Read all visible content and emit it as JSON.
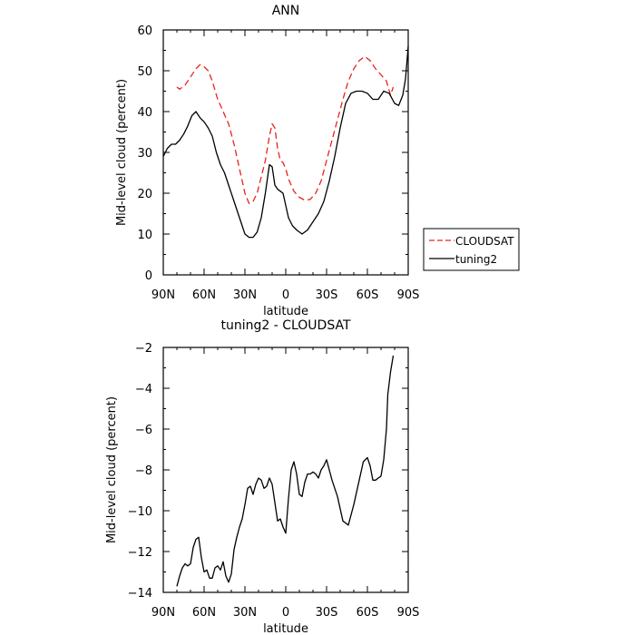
{
  "chart_data": [
    {
      "type": "line",
      "title": "ANN",
      "xlabel": "latitude",
      "ylabel": "Mid-level cloud (percent)",
      "xlim": [
        90,
        -90
      ],
      "ylim": [
        0,
        60
      ],
      "x_ticks": [
        90,
        60,
        30,
        0,
        -30,
        -60,
        -90
      ],
      "x_tick_labels": [
        "90N",
        "60N",
        "30N",
        "0",
        "30S",
        "60S",
        "90S"
      ],
      "y_ticks": [
        0,
        10,
        20,
        30,
        40,
        50,
        60
      ],
      "y_tick_labels": [
        "0",
        "10",
        "20",
        "30",
        "40",
        "50",
        "60"
      ],
      "grid": false,
      "legend": {
        "placement": "right",
        "entries": [
          {
            "label": "CLOUDSAT",
            "color": "#e8231f",
            "style": "dashed"
          },
          {
            "label": "tuning2",
            "color": "#000000",
            "style": "solid"
          }
        ]
      },
      "series": [
        {
          "name": "CLOUDSAT",
          "color": "#e8231f",
          "style": "dashed",
          "x": [
            80,
            78,
            74,
            70,
            66,
            63,
            60,
            57,
            54,
            50,
            46,
            42,
            38,
            34,
            30,
            27,
            24,
            21,
            18,
            15,
            12,
            10,
            8,
            6,
            4,
            2,
            0,
            -2,
            -6,
            -10,
            -14,
            -18,
            -22,
            -26,
            -30,
            -34,
            -38,
            -42,
            -46,
            -50,
            -54,
            -58,
            -62,
            -66,
            -70,
            -74,
            -77,
            -79
          ],
          "y": [
            46,
            45.5,
            46.5,
            48.5,
            50.5,
            51.5,
            51,
            50,
            47.5,
            43,
            40,
            37,
            32,
            26,
            20,
            17.5,
            18,
            20,
            24,
            28,
            34,
            37,
            36,
            31,
            28,
            27.5,
            26,
            23.5,
            20.5,
            19,
            18.3,
            18.5,
            20,
            23,
            28,
            33,
            38,
            43,
            47.5,
            50.5,
            52.5,
            53.5,
            52.5,
            50.5,
            49,
            47.5,
            44,
            46
          ]
        },
        {
          "name": "tuning2",
          "color": "#000000",
          "style": "solid",
          "x": [
            90,
            87,
            84,
            81,
            78,
            75,
            72,
            69,
            66,
            63,
            60,
            57,
            54,
            51,
            48,
            45,
            42,
            39,
            36,
            33,
            30,
            27,
            24,
            21,
            18,
            15,
            12,
            10,
            8,
            6,
            4,
            2,
            0,
            -2,
            -5,
            -8,
            -12,
            -16,
            -20,
            -24,
            -28,
            -32,
            -36,
            -40,
            -44,
            -48,
            -52,
            -56,
            -60,
            -64,
            -68,
            -72,
            -76,
            -80,
            -83,
            -86,
            -88,
            -90
          ],
          "y": [
            29,
            31,
            32,
            32,
            33,
            34.5,
            36.5,
            39,
            40,
            38.5,
            37.5,
            36,
            34,
            30,
            27,
            25,
            22,
            19,
            16,
            13,
            10,
            9.2,
            9.2,
            10.5,
            14,
            20,
            27,
            26.5,
            22,
            21,
            20.5,
            20,
            17,
            14,
            12,
            11,
            10,
            11,
            13,
            15,
            18,
            23,
            29,
            36,
            42,
            44.5,
            45,
            45,
            44.5,
            43,
            43,
            45,
            44.5,
            42,
            41.5,
            44,
            48,
            56
          ]
        }
      ]
    },
    {
      "type": "line",
      "title": "tuning2 - CLOUDSAT",
      "xlabel": "latitude",
      "ylabel": "Mid-level cloud (percent)",
      "xlim": [
        90,
        -90
      ],
      "ylim": [
        -14,
        -2
      ],
      "x_ticks": [
        90,
        60,
        30,
        0,
        -30,
        -60,
        -90
      ],
      "x_tick_labels": [
        "90N",
        "60N",
        "30N",
        "0",
        "30S",
        "60S",
        "90S"
      ],
      "y_ticks": [
        -14,
        -12,
        -10,
        -8,
        -6,
        -4,
        -2
      ],
      "y_tick_labels": [
        "−14",
        "−12",
        "−10",
        "−8",
        "−6",
        "−4",
        "−2"
      ],
      "grid": false,
      "series": [
        {
          "color": "#000000",
          "style": "solid",
          "x": [
            80,
            78,
            76,
            74,
            72,
            70,
            68,
            66,
            64,
            62,
            60,
            58,
            56,
            54,
            52,
            50,
            48,
            46,
            44,
            42,
            40,
            38,
            36,
            34,
            32,
            30,
            28,
            26,
            24,
            22,
            20,
            18,
            16,
            14,
            12,
            10,
            8,
            6,
            4,
            2,
            0,
            -2,
            -4,
            -6,
            -8,
            -10,
            -12,
            -14,
            -16,
            -18,
            -20,
            -22,
            -24,
            -26,
            -28,
            -30,
            -34,
            -38,
            -42,
            -46,
            -50,
            -54,
            -57,
            -60,
            -62,
            -64,
            -66,
            -68,
            -70,
            -72,
            -74,
            -75,
            -77,
            -79
          ],
          "y": [
            -13.7,
            -13.2,
            -12.8,
            -12.6,
            -12.7,
            -12.6,
            -11.8,
            -11.4,
            -11.3,
            -12.3,
            -13,
            -12.9,
            -13.3,
            -13.3,
            -12.8,
            -12.7,
            -12.9,
            -12.5,
            -13.2,
            -13.5,
            -13.1,
            -11.9,
            -11.3,
            -10.8,
            -10.4,
            -9.7,
            -8.9,
            -8.8,
            -9.2,
            -8.7,
            -8.4,
            -8.5,
            -8.9,
            -8.8,
            -8.4,
            -8.7,
            -9.6,
            -10.5,
            -10.4,
            -10.8,
            -11.1,
            -9.4,
            -8,
            -7.6,
            -8.2,
            -9.2,
            -9.3,
            -8.6,
            -8.2,
            -8.2,
            -8.1,
            -8.2,
            -8.4,
            -8,
            -7.8,
            -7.5,
            -8.5,
            -9.3,
            -10.5,
            -10.7,
            -9.7,
            -8.5,
            -7.6,
            -7.4,
            -7.8,
            -8.5,
            -8.5,
            -8.4,
            -8.3,
            -7.5,
            -6,
            -4.3,
            -3.2,
            -2.4
          ]
        }
      ]
    }
  ]
}
